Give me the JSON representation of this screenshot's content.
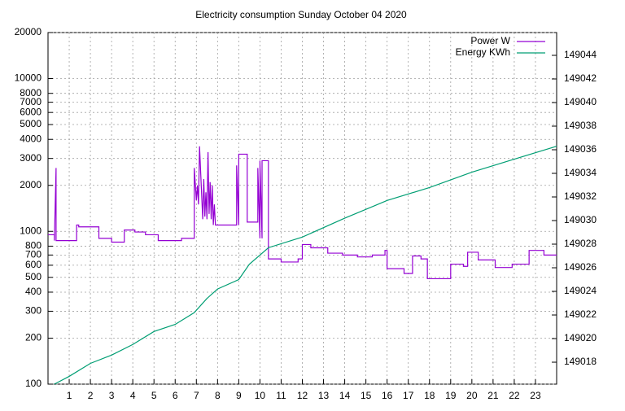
{
  "chart_data": {
    "type": "line",
    "title": "Electricity consumption Sunday October 04 2020",
    "xlim": [
      0,
      24
    ],
    "xticks": [
      1,
      2,
      3,
      4,
      5,
      6,
      7,
      8,
      9,
      10,
      11,
      12,
      13,
      14,
      15,
      16,
      17,
      18,
      19,
      20,
      21,
      22,
      23
    ],
    "ylim": [
      100,
      20000
    ],
    "log_y": true,
    "yticks": [
      100,
      200,
      300,
      400,
      500,
      600,
      700,
      800,
      1000,
      2000,
      3000,
      4000,
      5000,
      6000,
      7000,
      8000,
      10000,
      20000
    ],
    "y2lim": [
      149016.14,
      149045.93
    ],
    "y2ticks": [
      149018,
      149020,
      149022,
      149024,
      149026,
      149028,
      149030,
      149032,
      149034,
      149036,
      149038,
      149040,
      149042,
      149044
    ],
    "grid": true,
    "legend": "top-right",
    "series": [
      {
        "name": "Power W",
        "color": "#9400d3",
        "x": [
          0,
          0.3,
          0.3,
          0.38,
          0.38,
          0.4,
          0.4,
          1.35,
          1.35,
          1.45,
          1.45,
          2.4,
          2.4,
          3.0,
          3.0,
          3.6,
          3.6,
          4.1,
          4.1,
          4.6,
          4.6,
          5.2,
          5.2,
          6.3,
          6.3,
          6.9,
          6.9,
          7.0,
          7.05,
          7.1,
          7.15,
          7.3,
          7.35,
          7.4,
          7.45,
          7.5,
          7.55,
          7.6,
          7.65,
          7.7,
          7.75,
          7.8,
          7.85,
          7.9,
          7.9,
          8.6,
          8.6,
          8.9,
          8.9,
          9.0,
          9.0,
          9.4,
          9.4,
          9.9,
          9.9,
          10.0,
          10.0,
          10.1,
          10.1,
          10.4,
          10.4,
          11.0,
          11.0,
          11.8,
          11.8,
          12.0,
          12.0,
          12.4,
          12.4,
          13.2,
          13.2,
          13.9,
          13.9,
          14.6,
          14.6,
          15.3,
          15.3,
          15.9,
          15.9,
          16.0,
          16.0,
          16.8,
          16.8,
          17.2,
          17.2,
          17.6,
          17.6,
          17.9,
          17.9,
          19.0,
          19.0,
          19.6,
          19.6,
          19.8,
          19.8,
          20.3,
          20.3,
          21.1,
          21.1,
          21.9,
          21.9,
          22.7,
          22.7,
          23.4,
          23.4,
          24
        ],
        "values": [
          950,
          950,
          870,
          2600,
          870,
          870,
          870,
          870,
          1100,
          1100,
          1070,
          1070,
          900,
          900,
          850,
          850,
          1020,
          1020,
          990,
          990,
          950,
          950,
          870,
          870,
          900,
          900,
          2600,
          1600,
          2000,
          1500,
          3600,
          1200,
          2200,
          1250,
          1800,
          1200,
          3300,
          1300,
          2100,
          1200,
          2000,
          1100,
          1500,
          1100,
          1100,
          1100,
          1100,
          1100,
          2700,
          1100,
          3200,
          3200,
          1150,
          1150,
          2600,
          900,
          2900,
          900,
          2900,
          2900,
          660,
          660,
          630,
          630,
          660,
          660,
          820,
          820,
          780,
          780,
          720,
          720,
          700,
          700,
          680,
          680,
          700,
          700,
          750,
          750,
          570,
          570,
          530,
          530,
          690,
          690,
          660,
          660,
          490,
          490,
          610,
          610,
          590,
          590,
          730,
          730,
          650,
          650,
          580,
          580,
          610,
          610,
          750,
          750,
          700,
          700
        ]
      },
      {
        "name": "Energy KWh",
        "color": "#009e73",
        "axis": "y2",
        "x": [
          0.3,
          1,
          2,
          3,
          4,
          5,
          6,
          6.9,
          7.5,
          8,
          9,
          9.5,
          10.4,
          12,
          14,
          16,
          18,
          20,
          22,
          24
        ],
        "values": [
          149016.14,
          149016.8,
          149017.9,
          149018.6,
          149019.5,
          149020.6,
          149021.2,
          149022.2,
          149023.4,
          149024.2,
          149025.0,
          149026.3,
          149027.7,
          149028.6,
          149030.2,
          149031.7,
          149032.8,
          149034.1,
          149035.2,
          149036.3
        ]
      }
    ]
  }
}
